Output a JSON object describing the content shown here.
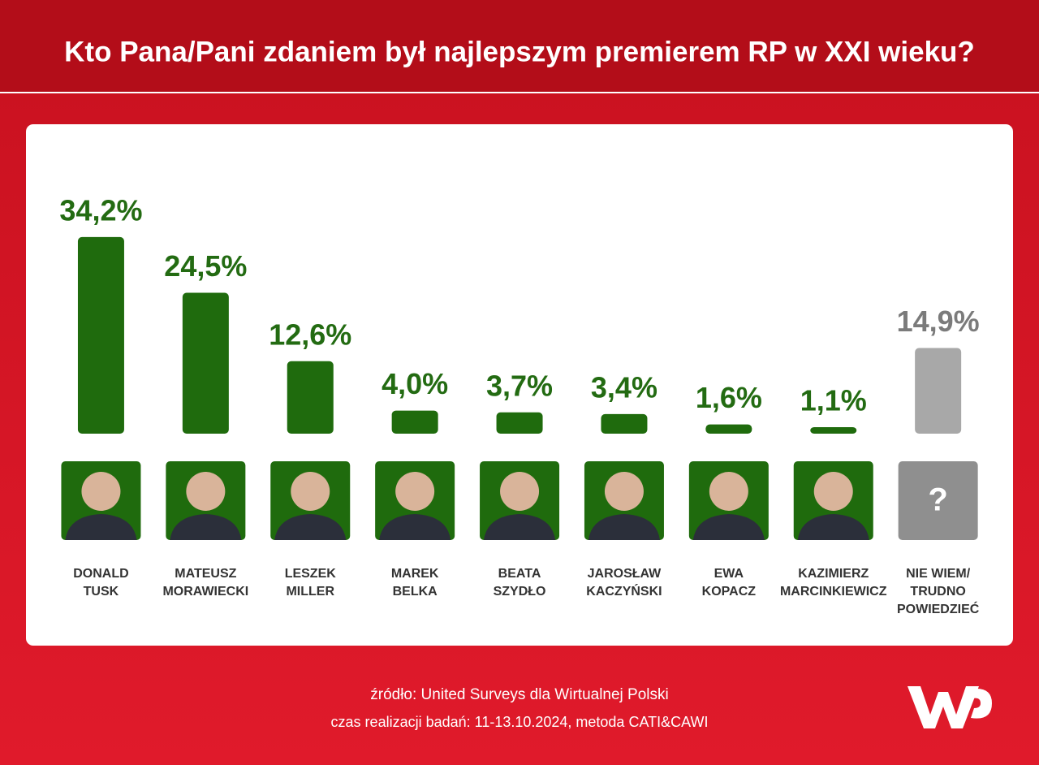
{
  "chart_data": {
    "type": "bar",
    "title": "Kto Pana/Pani zdaniem był najlepszym premierem RP w XXI wieku?",
    "categories": [
      "DONALD\nTUSK",
      "MATEUSZ\nMORAWIECKI",
      "LESZEK\nMILLER",
      "MAREK\nBELKA",
      "BEATA\nSZYDŁO",
      "JAROSŁAW\nKACZYŃSKI",
      "EWA\nKOPACZ",
      "KAZIMIERZ\nMARCINKIEWICZ",
      "NIE WIEM/\nTRUDNO\nPOWIEDZIEĆ"
    ],
    "values": [
      34.2,
      24.5,
      12.6,
      4.0,
      3.7,
      3.4,
      1.6,
      1.1,
      14.9
    ],
    "value_labels": [
      "34,2%",
      "24,5%",
      "12,6%",
      "4,0%",
      "3,7%",
      "3,4%",
      "1,6%",
      "1,1%",
      "14,9%"
    ],
    "colors": [
      "#1f6b0d",
      "#1f6b0d",
      "#1f6b0d",
      "#1f6b0d",
      "#1f6b0d",
      "#1f6b0d",
      "#1f6b0d",
      "#1f6b0d",
      "#a8a8a8"
    ],
    "placeholder_label": "?",
    "source": "źródło: United Surveys dla Wirtualnej Polski",
    "note": "czas realizacji badań: 11-13.10.2024, metoda CATI&CAWI"
  }
}
